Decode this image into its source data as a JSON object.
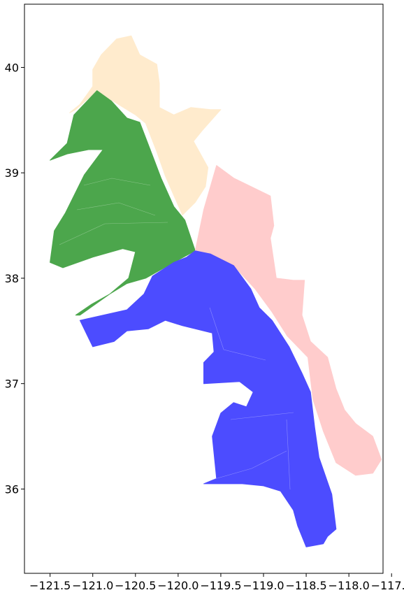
{
  "chart_data": {
    "type": "map",
    "title": "",
    "xlabel": "",
    "ylabel": "",
    "xlim": [
      -121.8,
      -117.6
    ],
    "ylim": [
      35.2,
      40.6
    ],
    "x_ticks": [
      {
        "value": -121.5,
        "label": "−121.5"
      },
      {
        "value": -121.0,
        "label": "−121.0"
      },
      {
        "value": -120.5,
        "label": "−120.5"
      },
      {
        "value": -120.0,
        "label": "−120.0"
      },
      {
        "value": -119.5,
        "label": "−119.5"
      },
      {
        "value": -119.0,
        "label": "−119.0"
      },
      {
        "value": -118.5,
        "label": "−118.5"
      },
      {
        "value": -118.0,
        "label": "−118.0"
      },
      {
        "value": -117.5,
        "label": "−117.5"
      }
    ],
    "y_ticks": [
      {
        "value": 36,
        "label": "36"
      },
      {
        "value": 37,
        "label": "37"
      },
      {
        "value": 38,
        "label": "38"
      },
      {
        "value": 39,
        "label": "39"
      },
      {
        "value": 40,
        "label": "40"
      }
    ],
    "grid": false,
    "regions": [
      {
        "color": "#ffebcd",
        "polygon": [
          [
            -121.27,
            39.57
          ],
          [
            -121.15,
            39.65
          ],
          [
            -121.0,
            39.82
          ],
          [
            -121.0,
            39.98
          ],
          [
            -120.9,
            40.12
          ],
          [
            -120.72,
            40.27
          ],
          [
            -120.55,
            40.3
          ],
          [
            -120.45,
            40.12
          ],
          [
            -120.25,
            40.03
          ],
          [
            -120.22,
            39.85
          ],
          [
            -120.22,
            39.62
          ],
          [
            -120.05,
            39.55
          ],
          [
            -119.85,
            39.62
          ],
          [
            -119.62,
            39.6
          ],
          [
            -119.5,
            39.6
          ],
          [
            -119.72,
            39.4
          ],
          [
            -119.82,
            39.3
          ],
          [
            -119.65,
            39.05
          ],
          [
            -119.68,
            38.87
          ],
          [
            -119.8,
            38.72
          ],
          [
            -119.95,
            38.6
          ],
          [
            -120.15,
            38.97
          ],
          [
            -120.25,
            39.2
          ],
          [
            -120.38,
            39.47
          ],
          [
            -120.5,
            39.55
          ],
          [
            -120.8,
            39.7
          ],
          [
            -120.95,
            39.78
          ],
          [
            -121.2,
            39.6
          ]
        ]
      },
      {
        "color": "#4ca64c",
        "polygon": [
          [
            -121.22,
            39.55
          ],
          [
            -120.95,
            39.78
          ],
          [
            -120.78,
            39.68
          ],
          [
            -120.6,
            39.52
          ],
          [
            -120.45,
            39.48
          ],
          [
            -120.28,
            39.12
          ],
          [
            -120.2,
            38.95
          ],
          [
            -120.05,
            38.68
          ],
          [
            -119.92,
            38.55
          ],
          [
            -119.8,
            38.26
          ],
          [
            -120.05,
            38.15
          ],
          [
            -120.38,
            38.0
          ],
          [
            -120.6,
            37.95
          ],
          [
            -120.8,
            37.85
          ],
          [
            -121.15,
            37.65
          ],
          [
            -121.2,
            37.65
          ],
          [
            -121.02,
            37.75
          ],
          [
            -120.8,
            37.85
          ],
          [
            -120.58,
            38.0
          ],
          [
            -120.5,
            38.25
          ],
          [
            -120.65,
            38.28
          ],
          [
            -121.0,
            38.2
          ],
          [
            -121.35,
            38.1
          ],
          [
            -121.5,
            38.15
          ],
          [
            -121.45,
            38.45
          ],
          [
            -121.32,
            38.62
          ],
          [
            -121.1,
            38.98
          ],
          [
            -120.88,
            39.22
          ],
          [
            -121.05,
            39.22
          ],
          [
            -121.3,
            39.18
          ],
          [
            -121.5,
            39.12
          ],
          [
            -121.3,
            39.28
          ]
        ]
      },
      {
        "color": "#ffcccc",
        "polygon": [
          [
            -119.8,
            38.26
          ],
          [
            -119.7,
            38.65
          ],
          [
            -119.55,
            39.07
          ],
          [
            -119.35,
            38.95
          ],
          [
            -119.12,
            38.86
          ],
          [
            -118.92,
            38.78
          ],
          [
            -118.88,
            38.5
          ],
          [
            -118.92,
            38.38
          ],
          [
            -118.85,
            38.0
          ],
          [
            -118.65,
            37.98
          ],
          [
            -118.52,
            37.98
          ],
          [
            -118.55,
            37.65
          ],
          [
            -118.45,
            37.4
          ],
          [
            -118.25,
            37.25
          ],
          [
            -118.15,
            36.95
          ],
          [
            -118.05,
            36.75
          ],
          [
            -117.92,
            36.62
          ],
          [
            -117.72,
            36.5
          ],
          [
            -117.62,
            36.28
          ],
          [
            -117.72,
            36.15
          ],
          [
            -117.92,
            36.13
          ],
          [
            -118.15,
            36.25
          ],
          [
            -118.3,
            36.55
          ],
          [
            -118.42,
            36.85
          ],
          [
            -118.48,
            37.25
          ],
          [
            -118.72,
            37.45
          ],
          [
            -118.9,
            37.68
          ],
          [
            -119.1,
            37.9
          ],
          [
            -119.35,
            38.12
          ],
          [
            -119.62,
            38.23
          ]
        ]
      },
      {
        "color": "#4c4cff",
        "polygon": [
          [
            -119.8,
            38.26
          ],
          [
            -119.62,
            38.23
          ],
          [
            -119.35,
            38.12
          ],
          [
            -119.15,
            37.9
          ],
          [
            -119.05,
            37.72
          ],
          [
            -118.9,
            37.6
          ],
          [
            -118.7,
            37.35
          ],
          [
            -118.55,
            37.1
          ],
          [
            -118.45,
            36.92
          ],
          [
            -118.4,
            36.58
          ],
          [
            -118.35,
            36.3
          ],
          [
            -118.2,
            35.95
          ],
          [
            -118.15,
            35.62
          ],
          [
            -118.25,
            35.55
          ],
          [
            -118.3,
            35.48
          ],
          [
            -118.5,
            35.45
          ],
          [
            -118.6,
            35.65
          ],
          [
            -118.65,
            35.8
          ],
          [
            -118.8,
            35.98
          ],
          [
            -119.0,
            36.03
          ],
          [
            -119.25,
            36.05
          ],
          [
            -119.7,
            36.05
          ],
          [
            -119.55,
            36.1
          ],
          [
            -119.6,
            36.5
          ],
          [
            -119.5,
            36.72
          ],
          [
            -119.35,
            36.82
          ],
          [
            -119.2,
            36.78
          ],
          [
            -119.12,
            36.92
          ],
          [
            -119.28,
            37.02
          ],
          [
            -119.7,
            37.0
          ],
          [
            -119.7,
            37.2
          ],
          [
            -119.58,
            37.3
          ],
          [
            -119.6,
            37.48
          ],
          [
            -119.95,
            37.55
          ],
          [
            -120.15,
            37.6
          ],
          [
            -120.35,
            37.52
          ],
          [
            -120.6,
            37.5
          ],
          [
            -120.75,
            37.4
          ],
          [
            -121.0,
            37.35
          ],
          [
            -121.15,
            37.6
          ],
          [
            -120.6,
            37.7
          ],
          [
            -120.4,
            37.85
          ],
          [
            -120.3,
            38.02
          ],
          [
            -120.05,
            38.15
          ],
          [
            -119.9,
            38.2
          ]
        ]
      }
    ]
  }
}
